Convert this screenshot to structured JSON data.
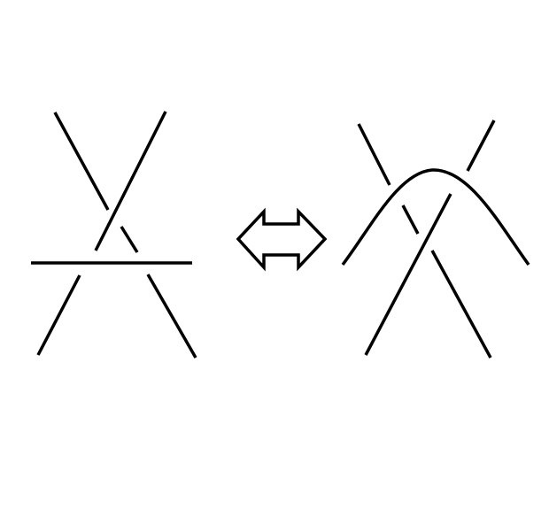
{
  "diagram": {
    "type": "knot-diagram",
    "colors": {
      "background": "#ffffff",
      "stroke": "#000000"
    },
    "panels": [
      {
        "id": "left-tangle",
        "crossings": 3,
        "strands": 3
      },
      {
        "id": "right-tangle",
        "crossings": 3,
        "strands": 3
      }
    ],
    "connector": {
      "icon": "double-headed-arrow-icon"
    }
  }
}
